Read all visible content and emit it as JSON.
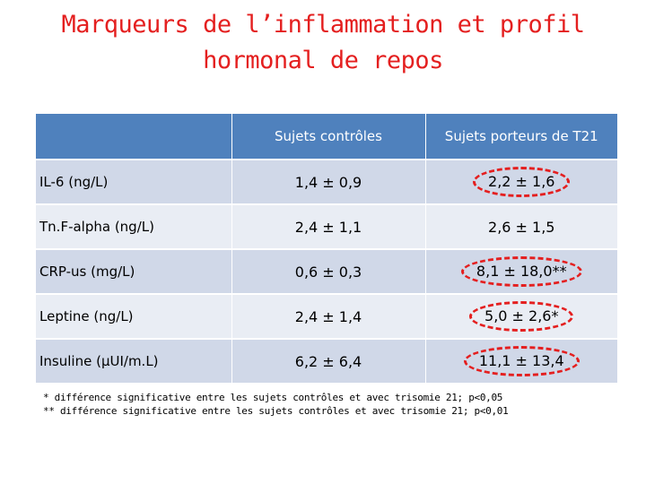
{
  "title": {
    "line1": "Marqueurs de l’inflammation et profil",
    "line2": "hormonal de repos"
  },
  "table": {
    "headers": [
      "",
      "Sujets contrôles",
      "Sujets porteurs de T21"
    ],
    "rows": [
      {
        "label": "IL-6 (ng/L)",
        "control": "1,4 ± 0,9",
        "t21": "2,2 ± 1,6",
        "highlight": true
      },
      {
        "label": "Tn.F-alpha (ng/L)",
        "control": "2,4 ± 1,1",
        "t21": "2,6 ± 1,5",
        "highlight": false
      },
      {
        "label": "CRP-us (mg/L)",
        "control": "0,6 ± 0,3",
        "t21": "8,1 ± 18,0**",
        "highlight": true
      },
      {
        "label": "Leptine (ng/L)",
        "control": "2,4 ± 1,4",
        "t21": "5,0 ± 2,6*",
        "highlight": true
      },
      {
        "label": "Insuline (µUI/m.L)",
        "control": "6,2 ± 6,4",
        "t21": "11,1 ± 13,4",
        "highlight": true
      }
    ],
    "colors": {
      "header": "#4f81bd",
      "row_odd": "#d0d8e8",
      "row_even": "#e9edf4",
      "highlight": "#e41f1f"
    }
  },
  "footnotes": [
    "* différence significative entre les sujets contrôles et avec trisomie 21; p<0,05",
    "** différence significative entre les sujets contrôles et avec trisomie 21; p<0,01"
  ]
}
